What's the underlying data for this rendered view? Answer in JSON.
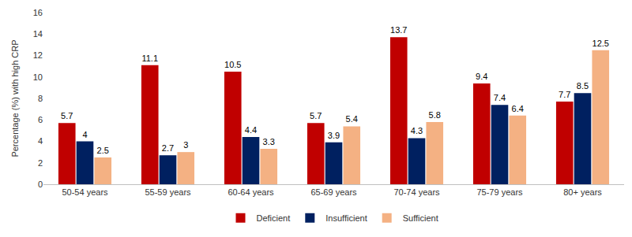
{
  "chart_data": {
    "type": "bar",
    "y_label": "Percentage (%) with high CRP",
    "categories": [
      "50-54 years",
      "55-59 years",
      "60-64 years",
      "65-69 years",
      "70-74 years",
      "75-79 years",
      "80+ years"
    ],
    "series": [
      {
        "name": "Deficient",
        "color": "#c00000",
        "values": [
          5.7,
          11.1,
          10.5,
          5.7,
          13.7,
          9.4,
          7.7
        ]
      },
      {
        "name": "Insufficient",
        "color": "#002060",
        "values": [
          4,
          2.7,
          4.4,
          3.9,
          4.3,
          7.4,
          8.5
        ]
      },
      {
        "name": "Sufficient",
        "color": "#f4b183",
        "values": [
          2.5,
          3,
          3.3,
          5.4,
          5.8,
          6.4,
          12.5
        ]
      }
    ],
    "ylim": [
      0,
      16
    ],
    "yticks": [
      0,
      2,
      4,
      6,
      8,
      10,
      12,
      14,
      16
    ],
    "grid": false,
    "legend": "bottom",
    "data_labels": true
  }
}
